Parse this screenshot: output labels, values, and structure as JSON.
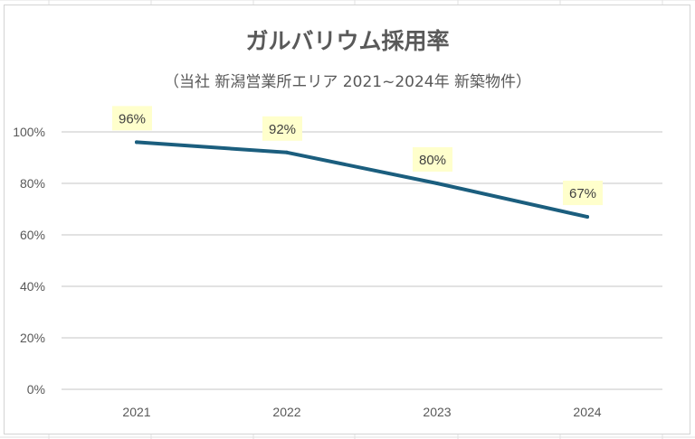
{
  "chart_data": {
    "type": "line",
    "title": "ガルバリウム採用率",
    "subtitle": "（当社 新潟営業所エリア 2021~2024年 新築物件）",
    "categories": [
      "2021",
      "2022",
      "2023",
      "2024"
    ],
    "series": [
      {
        "values": [
          0.96,
          0.92,
          0.8,
          0.67
        ]
      }
    ],
    "data_labels": [
      "96%",
      "92%",
      "80%",
      "67%"
    ],
    "y_ticks": [
      0,
      0.2,
      0.4,
      0.6,
      0.8,
      1.0
    ],
    "y_tick_labels": [
      "0%",
      "20%",
      "40%",
      "60%",
      "80%",
      "100%"
    ],
    "ylim": [
      0,
      1.0
    ],
    "grid": true,
    "legend": "none",
    "colors": {
      "line": "#1b5e7e",
      "label_bg": "#ffffcc",
      "grid": "#d9d9d9",
      "text": "#595959"
    }
  }
}
